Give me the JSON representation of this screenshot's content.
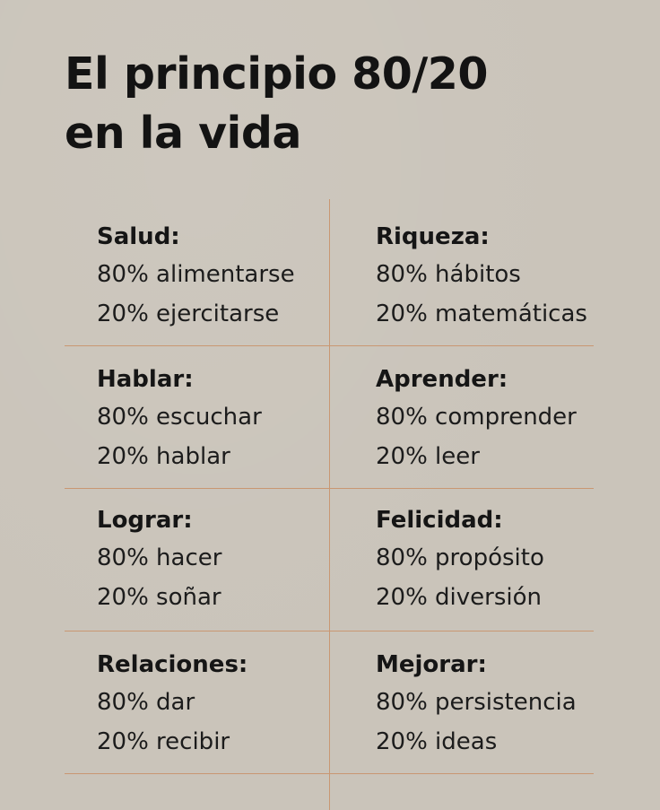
{
  "title": {
    "line1": "El principio 80/20",
    "line2": "en la vida"
  },
  "cells": [
    {
      "heading": "Salud:",
      "line1": "80% alimentarse",
      "line2": "20% ejercitarse"
    },
    {
      "heading": "Riqueza:",
      "line1": "80% hábitos",
      "line2": "20% matemáticas"
    },
    {
      "heading": "Hablar:",
      "line1": "80% escuchar",
      "line2": "20% hablar"
    },
    {
      "heading": "Aprender:",
      "line1": "80% comprender",
      "line2": "20% leer"
    },
    {
      "heading": "Lograr:",
      "line1": "80% hacer",
      "line2": "20% soñar"
    },
    {
      "heading": "Felicidad:",
      "line1": "80% propósito",
      "line2": "20% diversión"
    },
    {
      "heading": "Relaciones:",
      "line1": "80% dar",
      "line2": "20% recibir"
    },
    {
      "heading": "Mejorar:",
      "line1": "80% persistencia",
      "line2": "20% ideas"
    }
  ],
  "colors": {
    "background": "#cac4ba",
    "text": "#141414",
    "divider": "#c99772"
  }
}
